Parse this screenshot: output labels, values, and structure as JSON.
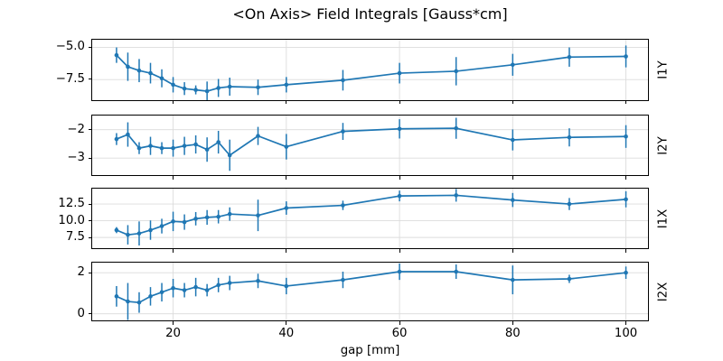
{
  "chart_data": {
    "type": "line",
    "title": "<On Axis> Field Integrals [Gauss*cm]",
    "xlabel": "gap [mm]",
    "line_color": "#1f77b4",
    "grid": true,
    "grid_color": "#dcdcdc",
    "legend": "none",
    "x": [
      10,
      12,
      14,
      16,
      18,
      20,
      22,
      24,
      26,
      28,
      30,
      35,
      40,
      50,
      60,
      70,
      80,
      90,
      100
    ],
    "xlim": [
      5.7,
      103.9
    ],
    "xtick_values": [
      20,
      40,
      60,
      80,
      100
    ],
    "xtick_labels": [
      "20",
      "40",
      "60",
      "80",
      "100"
    ],
    "subplots": [
      {
        "name": "I1Y",
        "ylim": [
          -9.1,
          -4.4
        ],
        "ytick_values": [
          -5.0,
          -7.5
        ],
        "ytick_labels": [
          "−5.0",
          "−7.5"
        ],
        "y": [
          -5.6,
          -6.5,
          -6.8,
          -7.0,
          -7.4,
          -7.9,
          -8.2,
          -8.3,
          -8.4,
          -8.15,
          -8.05,
          -8.1,
          -7.9,
          -7.55,
          -7.0,
          -6.85,
          -6.35,
          -5.75,
          -5.7
        ],
        "yerr": [
          0.6,
          1.1,
          0.9,
          0.8,
          0.7,
          0.6,
          0.5,
          0.35,
          0.75,
          0.7,
          0.7,
          0.6,
          0.6,
          0.8,
          0.8,
          1.1,
          0.85,
          0.75,
          0.85
        ]
      },
      {
        "name": "I2Y",
        "ylim": [
          -3.6,
          -1.5
        ],
        "ytick_values": [
          -2,
          -3
        ],
        "ytick_labels": [
          "−2",
          "−3"
        ],
        "y": [
          -2.33,
          -2.17,
          -2.65,
          -2.57,
          -2.65,
          -2.65,
          -2.57,
          -2.52,
          -2.7,
          -2.44,
          -2.9,
          -2.22,
          -2.6,
          -2.06,
          -1.97,
          -1.95,
          -2.36,
          -2.27,
          -2.24
        ],
        "yerr": [
          0.21,
          0.43,
          0.21,
          0.32,
          0.21,
          0.3,
          0.32,
          0.32,
          0.43,
          0.4,
          0.55,
          0.32,
          0.45,
          0.3,
          0.34,
          0.37,
          0.37,
          0.32,
          0.4
        ]
      },
      {
        "name": "I1X",
        "ylim": [
          5.9,
          14.8
        ],
        "ytick_values": [
          12.5,
          10.0,
          7.5
        ],
        "ytick_labels": [
          "12.5",
          "10.0",
          "7.5"
        ],
        "y": [
          8.6,
          7.9,
          8.1,
          8.6,
          9.2,
          9.9,
          9.8,
          10.3,
          10.5,
          10.6,
          11.0,
          10.8,
          11.9,
          12.3,
          13.7,
          13.8,
          13.1,
          12.5,
          13.2
        ],
        "yerr": [
          0.45,
          1.45,
          1.8,
          1.45,
          1.1,
          1.45,
          1.15,
          1.0,
          1.1,
          1.0,
          1.0,
          2.35,
          1.0,
          0.7,
          0.8,
          0.95,
          1.05,
          0.9,
          1.2
        ]
      },
      {
        "name": "I2X",
        "ylim": [
          -0.32,
          2.49
        ],
        "ytick_values": [
          2,
          0
        ],
        "ytick_labels": [
          "2",
          "0"
        ],
        "y": [
          0.85,
          0.6,
          0.55,
          0.85,
          1.05,
          1.25,
          1.15,
          1.3,
          1.15,
          1.4,
          1.5,
          1.6,
          1.35,
          1.65,
          2.05,
          2.05,
          1.65,
          1.7,
          2.0
        ],
        "yerr": [
          0.5,
          0.9,
          0.5,
          0.45,
          0.45,
          0.45,
          0.35,
          0.45,
          0.3,
          0.35,
          0.35,
          0.35,
          0.4,
          0.4,
          0.4,
          0.35,
          0.7,
          0.2,
          0.3
        ]
      }
    ]
  }
}
